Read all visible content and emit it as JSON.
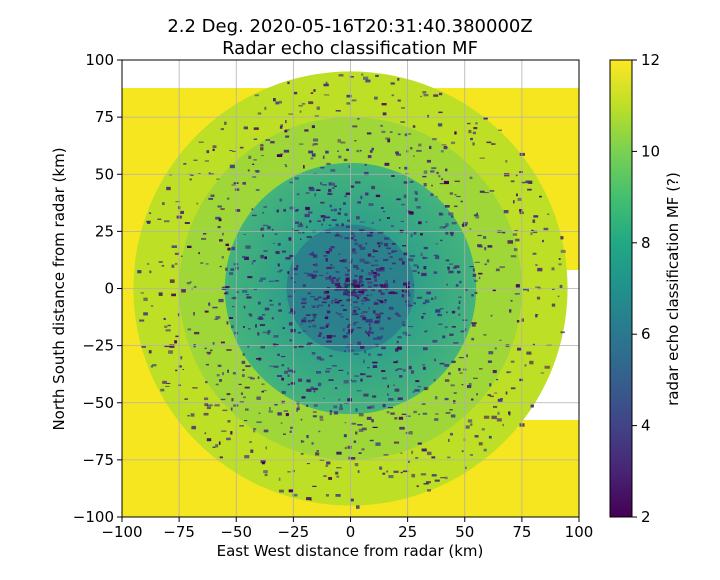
{
  "chart_data": {
    "type": "heatmap",
    "title_line1": "2.2 Deg. 2020-05-16T20:31:40.380000Z",
    "title_line2": "Radar echo classification MF",
    "xlabel": "East West distance from radar (km)",
    "ylabel": "North South distance from radar (km)",
    "xlim": [
      -100,
      100
    ],
    "ylim": [
      -100,
      100
    ],
    "x_ticks": [
      -100,
      -75,
      -50,
      -25,
      0,
      25,
      50,
      75,
      100
    ],
    "y_ticks": [
      100,
      75,
      50,
      25,
      0,
      -25,
      -50,
      -75,
      -100
    ],
    "x_tick_labels": [
      "−100",
      "−75",
      "−50",
      "−25",
      "0",
      "25",
      "50",
      "75",
      "100"
    ],
    "y_tick_labels": [
      "100",
      "75",
      "50",
      "25",
      "0",
      "−25",
      "−50",
      "−75",
      "−100"
    ],
    "grid": true,
    "colorbar": {
      "label": "radar echo classification MF (?)",
      "range": [
        2,
        12
      ],
      "ticks": [
        2,
        4,
        6,
        8,
        10,
        12
      ],
      "tick_labels": [
        "2",
        "4",
        "6",
        "8",
        "10",
        "12"
      ],
      "colormap": "viridis"
    },
    "field_description_values": {
      "outer_fill_value": 12,
      "coverage_disk_value": 11,
      "coverage_radius_km": 95,
      "inner_value": 9,
      "inner_radius_km": 55,
      "core_value": 8,
      "core_radius_km": 28,
      "speckle_value": 2
    }
  }
}
